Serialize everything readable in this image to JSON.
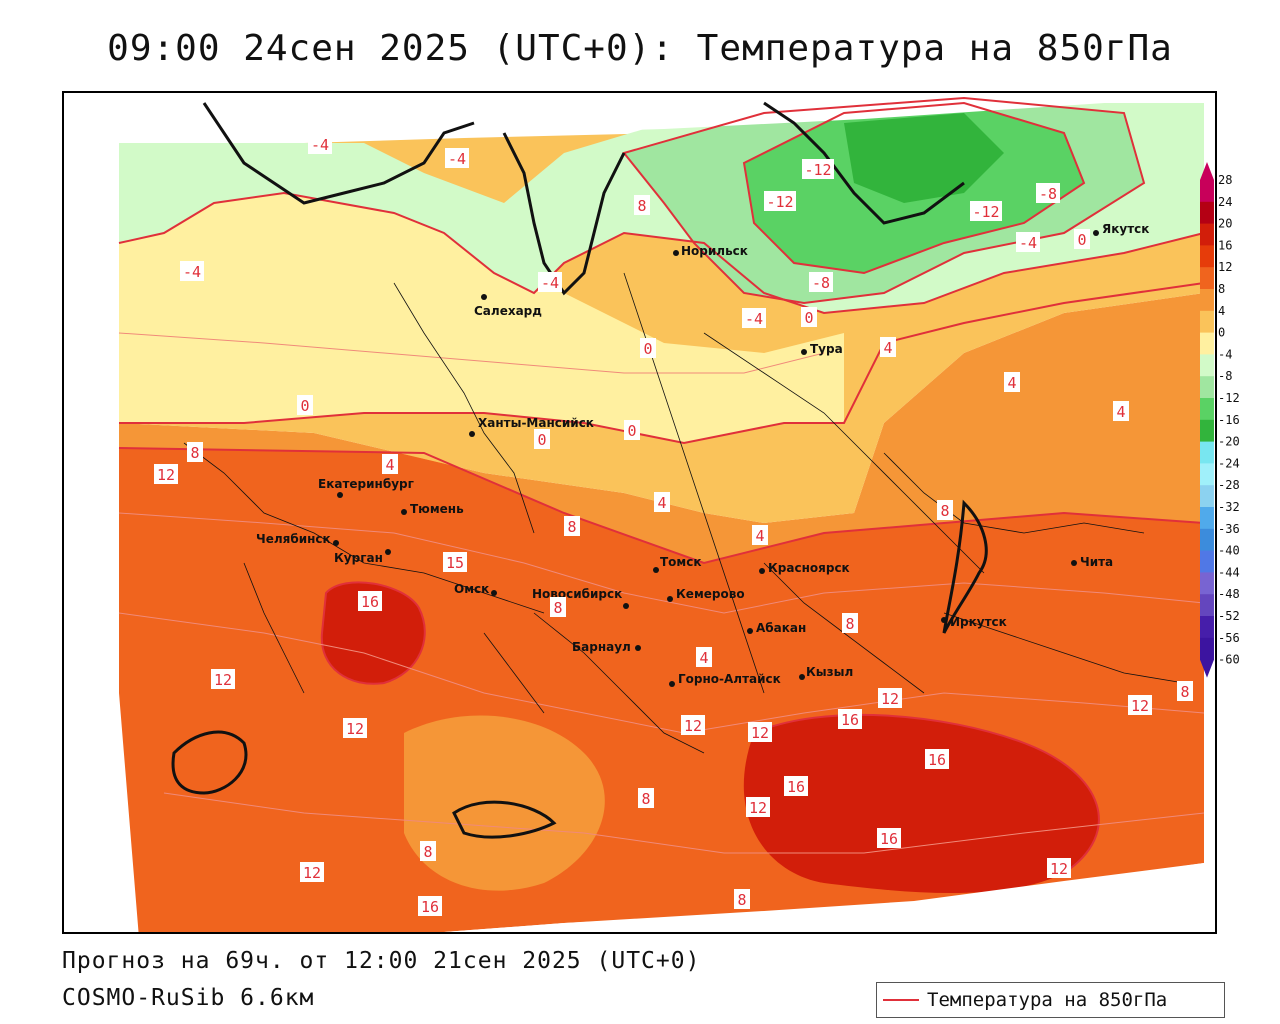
{
  "title": "09:00 24сен 2025 (UTC+0): Температура на 850гПа",
  "footer": {
    "forecast": "Прогноз на 69ч. от 12:00 21сен 2025 (UTC+0)",
    "model": "COSMO-RuSib 6.6км"
  },
  "legend": {
    "label": "Температура на 850гПа",
    "line_color": "#e0303a"
  },
  "cities": [
    {
      "name": "Салехард"
    },
    {
      "name": "Норильск"
    },
    {
      "name": "Якутск"
    },
    {
      "name": "Тура"
    },
    {
      "name": "Ханты-Мансийск"
    },
    {
      "name": "Екатеринбург"
    },
    {
      "name": "Тюмень"
    },
    {
      "name": "Челябинск"
    },
    {
      "name": "Курган"
    },
    {
      "name": "Омск"
    },
    {
      "name": "Новосибирск"
    },
    {
      "name": "Томск"
    },
    {
      "name": "Кемерово"
    },
    {
      "name": "Красноярск"
    },
    {
      "name": "Барнаул"
    },
    {
      "name": "Абакан"
    },
    {
      "name": "Иркутск"
    },
    {
      "name": "Чита"
    },
    {
      "name": "Горно-Алтайск"
    },
    {
      "name": "Кызыл"
    }
  ],
  "isotherm_labels": [
    "-4",
    "-4",
    "-4",
    "8",
    "-4",
    "-12",
    "-12",
    "-12",
    "-8",
    "-4",
    "0",
    "-8",
    "-4",
    "0",
    "4",
    "0",
    "4",
    "4",
    "0",
    "0",
    "0",
    "8",
    "12",
    "4",
    "8",
    "4",
    "4",
    "15",
    "16",
    "8",
    "8",
    "8",
    "4",
    "12",
    "12",
    "12",
    "8",
    "12",
    "16",
    "12",
    "16",
    "16",
    "12",
    "12",
    "16",
    "8",
    "8",
    "12",
    "8",
    "16",
    "12"
  ],
  "colorbar": {
    "ticks": [
      "28",
      "24",
      "20",
      "16",
      "12",
      "8",
      "4",
      "0",
      "-4",
      "-8",
      "-12",
      "-16",
      "-20",
      "-24",
      "-28",
      "-32",
      "-36",
      "-40",
      "-44",
      "-48",
      "-52",
      "-56",
      "-60"
    ],
    "colors": [
      "#c8005a",
      "#b40014",
      "#d21e0a",
      "#e63c0a",
      "#f0641e",
      "#f59637",
      "#fac35a",
      "#fff0a0",
      "#d2fac8",
      "#a0e6a0",
      "#5ad264",
      "#32b43c",
      "#78e6f0",
      "#a0f0fa",
      "#8cd2f0",
      "#50aaeb",
      "#3c8cdc",
      "#5078e6",
      "#7864d2",
      "#6446be",
      "#461eaa",
      "#3c14a0"
    ]
  }
}
